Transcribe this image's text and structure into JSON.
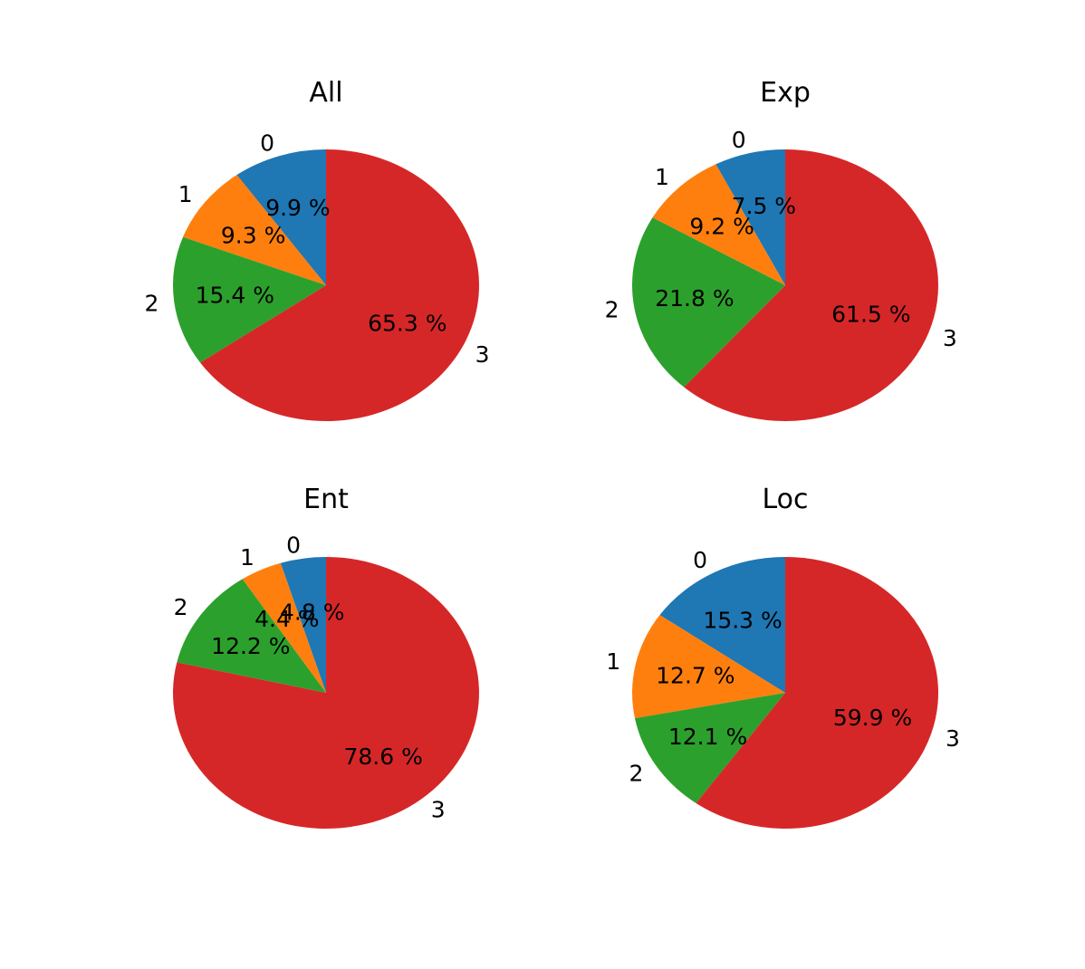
{
  "chart_data": [
    {
      "type": "pie",
      "title": "All",
      "categories": [
        "0",
        "1",
        "2",
        "3"
      ],
      "values": [
        9.9,
        9.3,
        15.4,
        65.3
      ],
      "value_labels": [
        "9.9 %",
        "9.3 %",
        "15.4 %",
        "65.3 %"
      ],
      "colors": [
        "#1f77b4",
        "#ff7f0e",
        "#2ca02c",
        "#d62728"
      ]
    },
    {
      "type": "pie",
      "title": "Exp",
      "categories": [
        "0",
        "1",
        "2",
        "3"
      ],
      "values": [
        7.5,
        9.2,
        21.8,
        61.5
      ],
      "value_labels": [
        "7.5 %",
        "9.2 %",
        "21.8 %",
        "61.5 %"
      ],
      "colors": [
        "#1f77b4",
        "#ff7f0e",
        "#2ca02c",
        "#d62728"
      ]
    },
    {
      "type": "pie",
      "title": "Ent",
      "categories": [
        "0",
        "1",
        "2",
        "3"
      ],
      "values": [
        4.8,
        4.4,
        12.2,
        78.6
      ],
      "value_labels": [
        "4.8 %",
        "4.4 %",
        "12.2 %",
        "78.6 %"
      ],
      "colors": [
        "#1f77b4",
        "#ff7f0e",
        "#2ca02c",
        "#d62728"
      ]
    },
    {
      "type": "pie",
      "title": "Loc",
      "categories": [
        "0",
        "1",
        "2",
        "3"
      ],
      "values": [
        15.3,
        12.7,
        12.1,
        59.9
      ],
      "value_labels": [
        "15.3 %",
        "12.7 %",
        "12.1 %",
        "59.9 %"
      ],
      "colors": [
        "#1f77b4",
        "#ff7f0e",
        "#2ca02c",
        "#d62728"
      ]
    }
  ]
}
